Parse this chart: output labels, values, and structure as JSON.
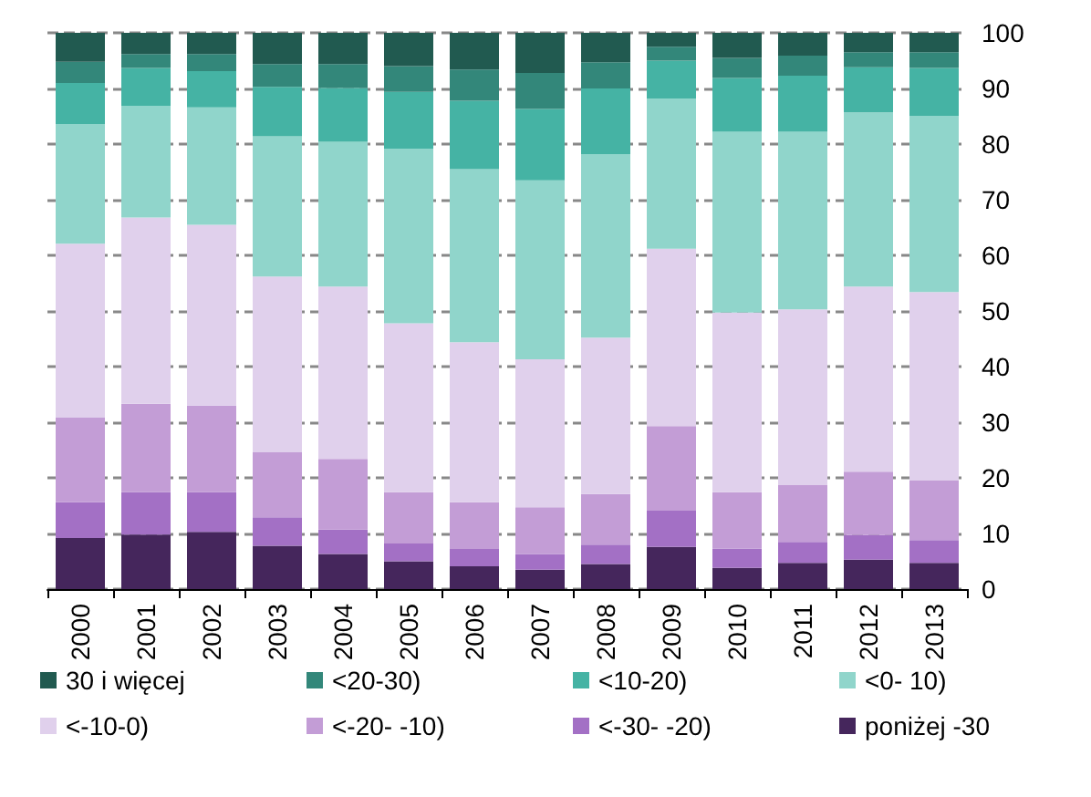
{
  "chart_data": {
    "type": "bar",
    "stacked": true,
    "grid": "y",
    "legend": "bottom",
    "categories": [
      "2000",
      "2001",
      "2002",
      "2003",
      "2004",
      "2005",
      "2006",
      "2007",
      "2008",
      "2009",
      "2010",
      "2011",
      "2012",
      "2013"
    ],
    "ylim": [
      0,
      100
    ],
    "yticks": [
      0,
      10,
      20,
      30,
      40,
      50,
      60,
      70,
      80,
      90,
      100
    ],
    "series": [
      {
        "name": "poniżej -30",
        "color": "#45265c",
        "values": [
          9.2,
          9.8,
          10.3,
          7.8,
          6.3,
          5.0,
          4.1,
          3.5,
          4.5,
          7.6,
          3.8,
          4.7,
          5.3,
          4.7
        ]
      },
      {
        "name": "<-30- -20)",
        "color": "#a370c5",
        "values": [
          6.4,
          7.6,
          7.1,
          5.1,
          4.4,
          3.2,
          3.1,
          2.8,
          3.5,
          6.5,
          3.5,
          3.8,
          4.4,
          4.1
        ]
      },
      {
        "name": "<-20- -10)",
        "color": "#c39dd6",
        "values": [
          15.2,
          15.9,
          15.6,
          11.7,
          12.7,
          9.2,
          8.4,
          8.4,
          9.1,
          15.2,
          10.1,
          10.2,
          11.4,
          10.8
        ]
      },
      {
        "name": "<-10-0)",
        "color": "#e0d0ec",
        "values": [
          31.3,
          33.5,
          32.5,
          31.6,
          31.0,
          30.4,
          28.8,
          26.6,
          28.1,
          31.9,
          32.3,
          31.6,
          33.3,
          33.8
        ]
      },
      {
        "name": "<0- 10)",
        "color": "#90d5cb",
        "values": [
          21.5,
          20.1,
          21.1,
          25.2,
          26.0,
          31.4,
          31.1,
          32.2,
          33.0,
          27.0,
          32.5,
          31.9,
          31.3,
          31.7
        ]
      },
      {
        "name": "<10-20)",
        "color": "#45b3a4",
        "values": [
          7.4,
          6.8,
          6.5,
          8.9,
          9.7,
          10.2,
          12.3,
          12.8,
          11.8,
          6.8,
          9.7,
          10.1,
          8.1,
          8.6
        ]
      },
      {
        "name": "<20-30)",
        "color": "#33877a",
        "values": [
          3.8,
          2.5,
          3.1,
          4.1,
          4.3,
          4.6,
          5.6,
          6.5,
          4.7,
          2.5,
          3.6,
          3.6,
          2.7,
          2.8
        ]
      },
      {
        "name": "30 i więcej",
        "color": "#215a50",
        "values": [
          5.2,
          3.8,
          3.8,
          5.6,
          5.6,
          6.0,
          6.6,
          7.2,
          5.3,
          2.5,
          4.5,
          4.1,
          3.5,
          3.5
        ]
      }
    ]
  }
}
